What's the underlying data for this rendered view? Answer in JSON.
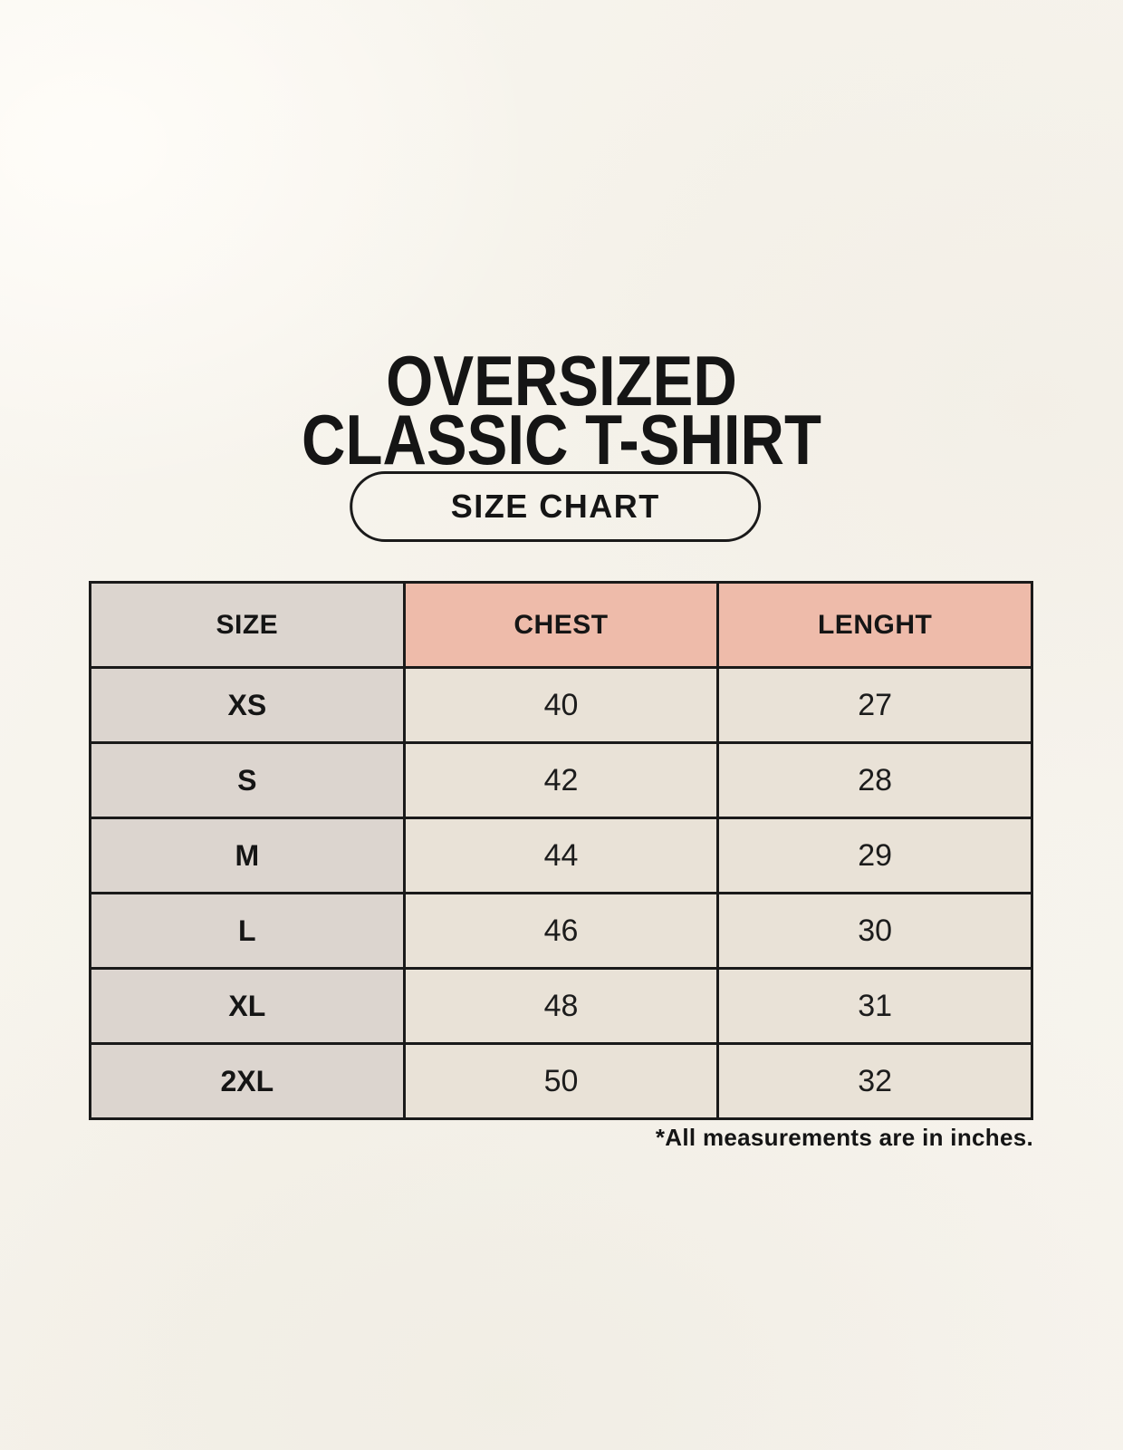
{
  "title": {
    "line1": "OVERSIZED",
    "line2": "CLASSIC T-SHIRT"
  },
  "badge": {
    "label": "SIZE CHART"
  },
  "table": {
    "headers": {
      "size": "SIZE",
      "chest": "CHEST",
      "length": "LENGHT"
    },
    "rows": [
      {
        "size": "XS",
        "chest": "40",
        "length": "27"
      },
      {
        "size": "S",
        "chest": "42",
        "length": "28"
      },
      {
        "size": "M",
        "chest": "44",
        "length": "29"
      },
      {
        "size": "L",
        "chest": "46",
        "length": "30"
      },
      {
        "size": "XL",
        "chest": "48",
        "length": "31"
      },
      {
        "size": "2XL",
        "chest": "50",
        "length": "32"
      }
    ]
  },
  "footnote": "*All measurements are in inches.",
  "colors": {
    "background": "#f7f4ee",
    "header_pink": "#eebbaa",
    "column_gray": "#dcd5cf",
    "cell_cream": "#e9e2d7",
    "border": "#1a1a1a",
    "text": "#151515"
  },
  "chart_data": {
    "type": "table",
    "title": "OVERSIZED CLASSIC T-SHIRT",
    "subtitle": "SIZE CHART",
    "columns": [
      "SIZE",
      "CHEST",
      "LENGHT"
    ],
    "rows": [
      [
        "XS",
        40,
        27
      ],
      [
        "S",
        42,
        28
      ],
      [
        "M",
        44,
        29
      ],
      [
        "L",
        46,
        30
      ],
      [
        "XL",
        48,
        31
      ],
      [
        "2XL",
        50,
        32
      ]
    ],
    "units": "inches",
    "note": "*All measurements are in inches."
  }
}
